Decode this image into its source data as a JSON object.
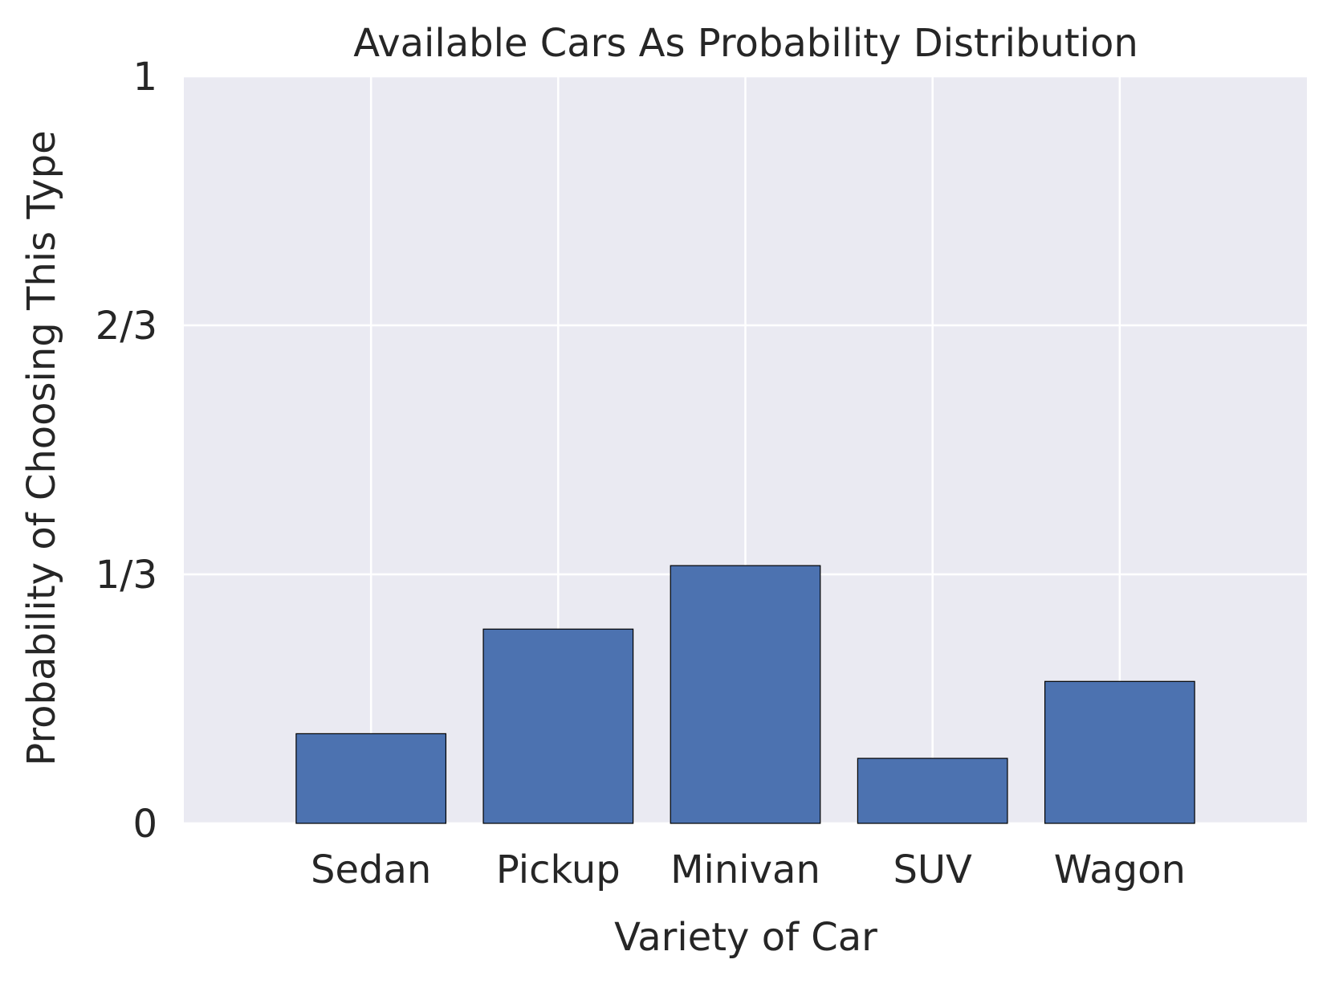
{
  "chart_data": {
    "type": "bar",
    "title": "Available Cars As Probability Distribution",
    "xlabel": "Variety of Car",
    "ylabel": "Probability of Choosing This Type",
    "categories": [
      "Sedan",
      "Pickup",
      "Minivan",
      "SUV",
      "Wagon"
    ],
    "values": [
      0.12,
      0.26,
      0.345,
      0.087,
      0.19
    ],
    "ylim": [
      0,
      1
    ],
    "yticks": [
      0,
      0.3333,
      0.6667,
      1
    ],
    "ytick_labels": [
      "0",
      "1/3",
      "2/3",
      "1"
    ],
    "xlim": [
      -1,
      5
    ],
    "grid": true,
    "colors": {
      "plot_background": "#EAEAF2",
      "grid": "#FFFFFF",
      "bar_fill": "#4C72B0",
      "bar_edge": "#000000",
      "text": "#262626"
    }
  }
}
